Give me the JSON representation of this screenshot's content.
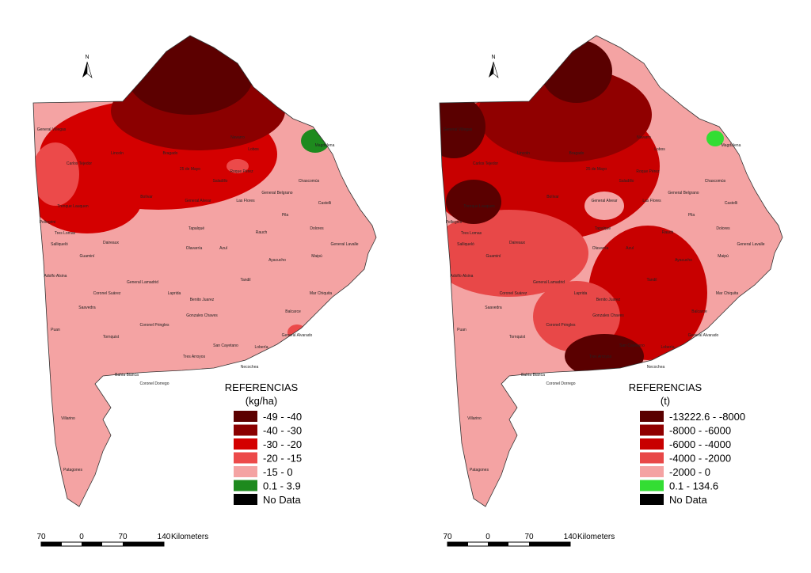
{
  "maps": [
    {
      "legend": {
        "title": "REFERENCIAS",
        "unit": "(kg/ha)",
        "items": [
          {
            "label": "-49 - -40",
            "color": "#5c0000"
          },
          {
            "label": "-40 - -30",
            "color": "#8b0000"
          },
          {
            "label": "-30 - -20",
            "color": "#d40000"
          },
          {
            "label": "-20 - -15",
            "color": "#ec4a4a"
          },
          {
            "label": "-15 - 0",
            "color": "#f4a3a3"
          },
          {
            "label": "0.1 - 3.9",
            "color": "#1e8a1e"
          },
          {
            "label": "No Data",
            "color": "#000000"
          }
        ]
      }
    },
    {
      "legend": {
        "title": "REFERENCIAS",
        "unit": "(t)",
        "items": [
          {
            "label": "-13222.6 - -8000",
            "color": "#5a0000"
          },
          {
            "label": "-8000 - -6000",
            "color": "#900000"
          },
          {
            "label": "-6000 - -4000",
            "color": "#c80000"
          },
          {
            "label": "-4000 - -2000",
            "color": "#e84848"
          },
          {
            "label": "-2000 - 0",
            "color": "#f4a3a3"
          },
          {
            "label": "0.1 - 134.6",
            "color": "#33dd33"
          },
          {
            "label": "No Data",
            "color": "#000000"
          }
        ]
      }
    }
  ],
  "north": "N",
  "scale_bar": {
    "ticks": [
      "70",
      "0",
      "70",
      "140"
    ],
    "unit": "Kilometers"
  },
  "districts": [
    "General Villegas",
    "Carlos Tejedor",
    "Lincoln",
    "Trenque Lauquen",
    "Pellegrini",
    "Tres Lomas",
    "Salliqueló",
    "Guaminí",
    "Adolfo Alsina",
    "Saavedra",
    "Puan",
    "Tornquist",
    "Coronel Suárez",
    "General Lamadrid",
    "Laprida",
    "Coronel Pringles",
    "Coronel Dorrego",
    "Tres Arroyos",
    "Gonzales Chaves",
    "Benito Juarez",
    "Tandil",
    "Azul",
    "Olavarría",
    "Tapalqué",
    "Bolívar",
    "Daireaux",
    "Villarino",
    "Patagones",
    "Bahía Blanca",
    "Rauch",
    "Ayacucho",
    "Balcarce",
    "Lobería",
    "Necochea",
    "San Cayetano",
    "General Alvarado",
    "Mar Chiquita",
    "Maipú",
    "General Alvear",
    "Las Flores",
    "Saladillo",
    "Chascomús",
    "Castelli",
    "Dolores",
    "General Lavalle",
    "Magdalena",
    "Lobos",
    "Navarro",
    "Roque Pérez",
    "General Belgrano",
    "Pila",
    "Bragado",
    "25 de Mayo"
  ]
}
